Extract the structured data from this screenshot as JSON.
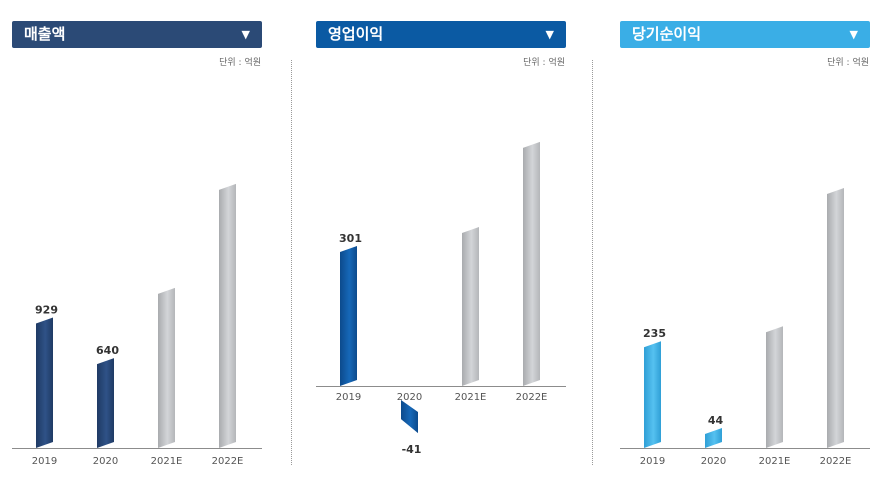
{
  "charts": [
    {
      "title": "매출액",
      "unit": "단위 : 억원",
      "header_color": "#2b4a76",
      "bar_color": "#2f5287",
      "bar_color_dark": "#1f3a64",
      "chart_data": {
        "type": "bar",
        "categories": [
          "2019",
          "2020",
          "2021E",
          "2022E"
        ],
        "values": [
          929,
          640,
          1140,
          1880
        ],
        "labels": [
          "929",
          "640",
          "",
          ""
        ],
        "estimated": [
          false,
          false,
          true,
          true
        ]
      }
    },
    {
      "title": "영업이익",
      "unit": "단위 : 억원",
      "header_color": "#0b5aa3",
      "bar_color": "#1668b8",
      "bar_color_dark": "#0c4a8c",
      "chart_data": {
        "type": "bar",
        "categories": [
          "2019",
          "2020",
          "2021E",
          "2022E"
        ],
        "values": [
          301,
          -41,
          342,
          525
        ],
        "labels": [
          "301",
          "-41",
          "",
          ""
        ],
        "estimated": [
          false,
          false,
          true,
          true
        ]
      }
    },
    {
      "title": "당기순이익",
      "unit": "단위 : 억원",
      "header_color": "#3aaee6",
      "bar_color": "#55c1f0",
      "bar_color_dark": "#2f9fd6",
      "chart_data": {
        "type": "bar",
        "categories": [
          "2019",
          "2020",
          "2021E",
          "2022E"
        ],
        "values": [
          235,
          44,
          268,
          572
        ],
        "labels": [
          "235",
          "44",
          "",
          ""
        ],
        "estimated": [
          false,
          false,
          true,
          true
        ]
      }
    }
  ]
}
